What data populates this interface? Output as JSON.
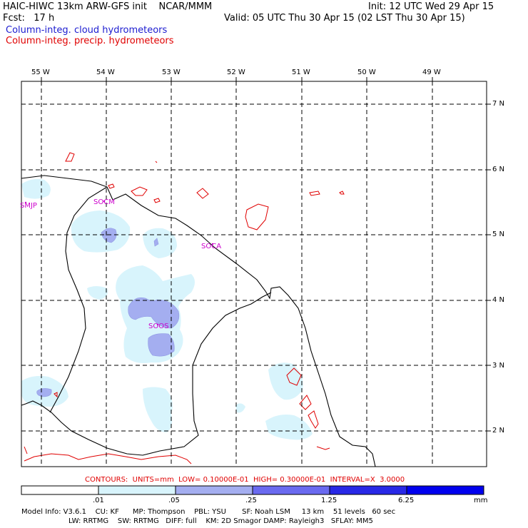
{
  "header": {
    "model_title": "HAIC-HIWC 13km ARW-GFS init    NCAR/MMM",
    "init": "Init: 12 UTC Wed 29 Apr 15",
    "fcst": "Fcst:   17 h",
    "valid": "Valid: 05 UTC Thu 30 Apr 15 (02 LST Thu 30 Apr 15)",
    "field1": "Column-integ. cloud hydrometeors",
    "field2": "Column-integ. precip. hydrometeors"
  },
  "axes": {
    "lon_labels": [
      "55 W",
      "54 W",
      "53 W",
      "52 W",
      "51 W",
      "50 W",
      "49 W"
    ],
    "lat_labels": [
      "7 N",
      "6 N",
      "5 N",
      "4 N",
      "3 N",
      "2 N"
    ]
  },
  "stations": [
    {
      "id": "SMJP"
    },
    {
      "id": "SOCM"
    },
    {
      "id": "SOCA"
    },
    {
      "id": "SOOS"
    }
  ],
  "contours_line": "CONTOURS:  UNITS=mm  LOW= 0.10000E-01  HIGH= 0.30000E-01  INTERVAL=X  3.0000",
  "colorbar": {
    "tick_labels": [
      ".01",
      ".05",
      ".25",
      "1.25",
      "6.25"
    ],
    "units": "mm",
    "colors": [
      "#ffffff",
      "#d8f4fc",
      "#a4aef0",
      "#6a6af0",
      "#2828e6",
      "#0000ee"
    ]
  },
  "model_info": {
    "line1": "Model Info: V3.6.1    CU: KF      MP: Thompson    PBL: YSU       SF: Noah LSM     13 km    51 levels   60 sec",
    "line2": "LW: RRTMG    SW: RRTMG   DIFF: full    KM: 2D Smagor DAMP: Rayleigh3   SFLAY: MM5"
  },
  "colors": {
    "cloud_light": "#d8f4fc",
    "cloud_mid": "#a4aef0",
    "precip_contour": "#e00000",
    "station": "#cc00cc"
  }
}
